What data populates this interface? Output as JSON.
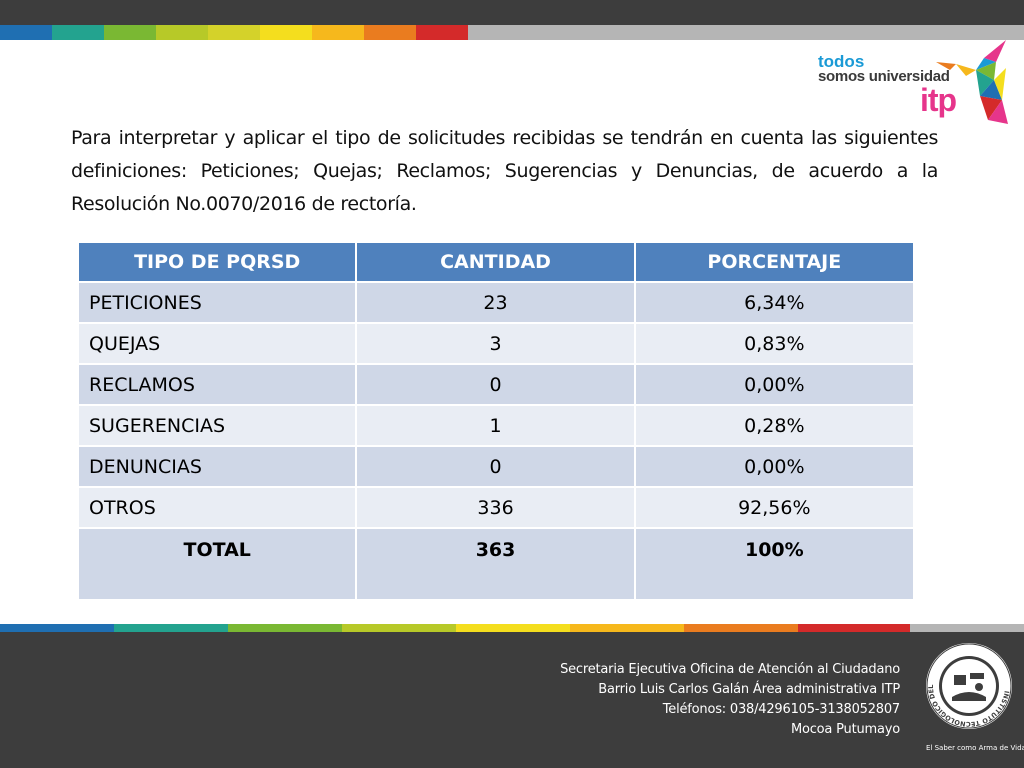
{
  "colors": {
    "band_dark": "#3d3d3d",
    "table_header": "#4f81bd",
    "row_dark": "#cfd7e7",
    "row_light": "#e9edf4",
    "stripe": [
      "#1f6fb2",
      "#23a38f",
      "#7ab833",
      "#b7c928",
      "#f4de1e",
      "#f6b81c",
      "#ea7c1f",
      "#d42a2a",
      "#b5b5b5"
    ]
  },
  "logo": {
    "line1": "todos",
    "line2": "somos universidad",
    "line3": "itp",
    "icon": "hummingbird-icon"
  },
  "intro": "Para interpretar y aplicar el tipo de solicitudes recibidas se tendrán en cuenta las siguientes definiciones: Peticiones; Quejas; Reclamos; Sugerencias y Denuncias, de acuerdo a la Resolución No.0070/2016 de rectoría.",
  "table": {
    "headers": [
      "TIPO DE PQRSD",
      "CANTIDAD",
      "PORCENTAJE"
    ],
    "rows": [
      [
        "PETICIONES",
        "23",
        "6,34%"
      ],
      [
        "QUEJAS",
        "3",
        "0,83%"
      ],
      [
        "RECLAMOS",
        "0",
        "0,00%"
      ],
      [
        "SUGERENCIAS",
        "1",
        "0,28%"
      ],
      [
        "DENUNCIAS",
        "0",
        "0,00%"
      ],
      [
        "OTROS",
        "336",
        "92,56%"
      ]
    ],
    "total": [
      "TOTAL",
      "363",
      "100%"
    ]
  },
  "footer": {
    "lines": [
      "Secretaria Ejecutiva  Oficina de Atención al Ciudadano",
      "Barrio Luis Carlos Galán Área administrativa ITP",
      "Teléfonos: 038/4296105-3138052807",
      "Mocoa Putumayo"
    ],
    "seal_caption": "El Saber como Arma de Vida",
    "seal_ring_text": "INSTITUTO TECNOLÓGICO DEL PUTUMAYO"
  }
}
